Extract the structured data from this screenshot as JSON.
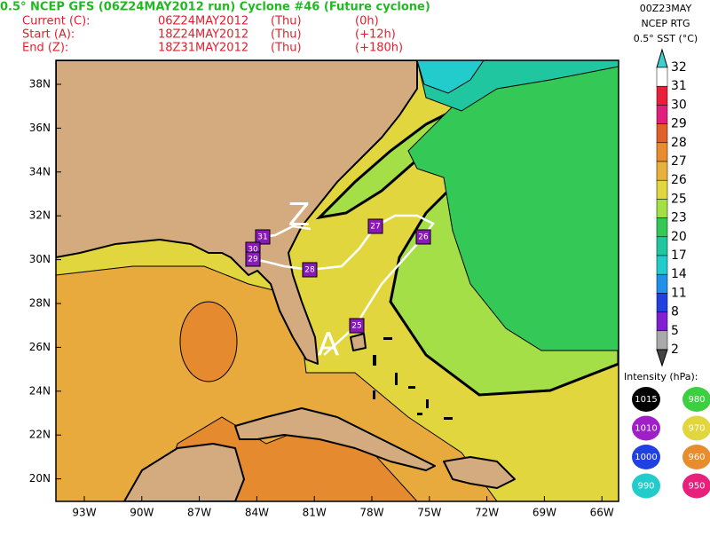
{
  "header": {
    "title": "0.5° NCEP GFS (06Z24MAY2012 run) Cyclone #46 (Future cyclone)",
    "rows": [
      [
        "Current (C):",
        "06Z24MAY2012",
        "(Thu)",
        "(0h)"
      ],
      [
        "Start (A):",
        "18Z24MAY2012",
        "(Thu)",
        "(+12h)"
      ],
      [
        "End (Z):",
        "18Z31MAY2012",
        "(Thu)",
        "(+180h)"
      ]
    ]
  },
  "source": {
    "lines": [
      "00Z23MAY",
      "NCEP RTG",
      "0.5° SST (°C)"
    ]
  },
  "colorbar": {
    "labels": [
      32,
      31,
      30,
      29,
      28,
      27,
      26,
      25,
      23,
      20,
      17,
      14,
      11,
      8,
      5,
      2
    ]
  },
  "map": {
    "lat_labels": [
      "38N",
      "36N",
      "34N",
      "32N",
      "30N",
      "28N",
      "26N",
      "24N",
      "22N",
      "20N"
    ],
    "lon_labels": [
      "93W",
      "90W",
      "87W",
      "84W",
      "81W",
      "78W",
      "75W",
      "72W",
      "69W",
      "66W"
    ],
    "track": {
      "start": "A",
      "end": "Z",
      "markers": [
        "31",
        "30",
        "29",
        "28",
        "27",
        "26",
        "25"
      ]
    }
  },
  "intensity": {
    "title": "Intensity (hPa):",
    "levels": [
      1015,
      980,
      1010,
      970,
      1000,
      960,
      990,
      950
    ]
  }
}
